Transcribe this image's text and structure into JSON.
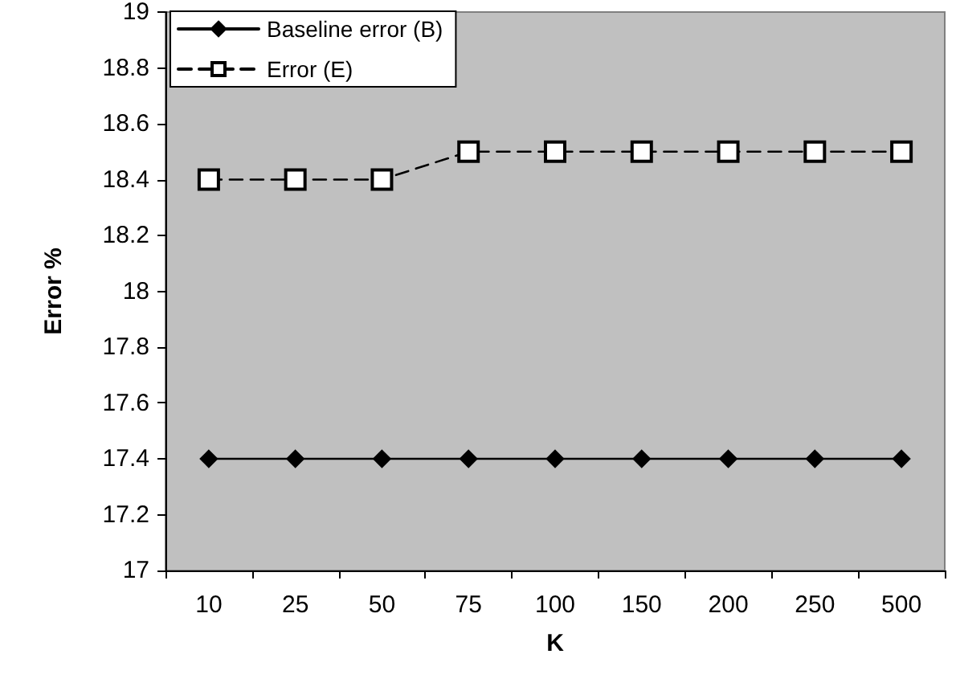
{
  "chart_data": {
    "type": "line",
    "xlabel": "K",
    "ylabel": "Error %",
    "categories": [
      "10",
      "25",
      "50",
      "75",
      "100",
      "150",
      "200",
      "250",
      "500"
    ],
    "series": [
      {
        "name": "Baseline error (B)",
        "color": "#000000",
        "marker": "diamond",
        "line_style": "solid",
        "values": [
          17.4,
          17.4,
          17.4,
          17.4,
          17.4,
          17.4,
          17.4,
          17.4,
          17.4
        ]
      },
      {
        "name": "Error (E)",
        "color": "#000000",
        "marker": "square",
        "line_style": "dashed",
        "values": [
          18.4,
          18.4,
          18.4,
          18.5,
          18.5,
          18.5,
          18.5,
          18.5,
          18.5
        ]
      }
    ],
    "ylim": [
      17,
      19
    ],
    "yticks": [
      17,
      17.2,
      17.4,
      17.6,
      17.8,
      18,
      18.2,
      18.4,
      18.6,
      18.8,
      19
    ],
    "grid": false,
    "legend": "top left"
  }
}
